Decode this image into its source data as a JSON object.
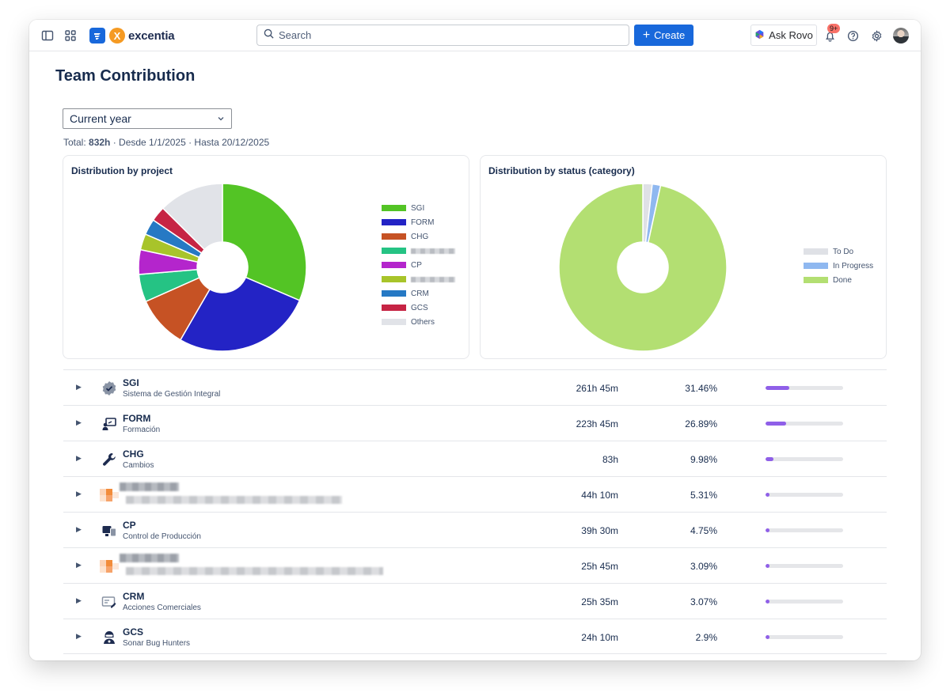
{
  "nav": {
    "brand": "excentia",
    "brand_mark": "X",
    "search_placeholder": "Search",
    "create_label": "Create",
    "rovo_label": "Ask Rovo",
    "notification_badge": "9+"
  },
  "page": {
    "title": "Team Contribution",
    "period": "Current year",
    "summary_prefix": "Total: ",
    "summary_total": "832h",
    "summary_suffix": " · Desde 1/1/2025 · Hasta 20/12/2025"
  },
  "project_chart": {
    "title": "Distribution by project",
    "chart_data": {
      "type": "pie",
      "title": "Distribution by project",
      "hole": "donut",
      "labels": [
        "SGI",
        "FORM",
        "CHG",
        "[redacted]",
        "CP",
        "[redacted]",
        "CRM",
        "GCS",
        "Others"
      ],
      "values": [
        31.46,
        26.89,
        9.98,
        5.31,
        4.75,
        3.09,
        3.07,
        2.9,
        12.55
      ],
      "colors": [
        "#53c425",
        "#2323c5",
        "#c65224",
        "#25c384",
        "#b425cc",
        "#a8c42a",
        "#2679c4",
        "#c62444",
        "#e1e3e8"
      ],
      "legend_position": "right"
    }
  },
  "status_chart": {
    "title": "Distribution by status (category)",
    "chart_data": {
      "type": "pie",
      "title": "Distribution by status (category)",
      "hole": "donut",
      "labels": [
        "To Do",
        "In Progress",
        "Done"
      ],
      "values": [
        1.8,
        1.6,
        96.6
      ],
      "colors": [
        "#dfe1e6",
        "#8fb8f0",
        "#b3df72"
      ],
      "legend_position": "right"
    }
  },
  "projects": [
    {
      "code": "SGI",
      "name": "Sistema de Gestión Integral",
      "time": "261h 45m",
      "pct": "31.46%",
      "share": 0.3146,
      "icon": "verified-badge-icon",
      "redacted": false
    },
    {
      "code": "FORM",
      "name": "Formación",
      "time": "223h 45m",
      "pct": "26.89%",
      "share": 0.2689,
      "icon": "presentation-icon",
      "redacted": false
    },
    {
      "code": "CHG",
      "name": "Cambios",
      "time": "83h",
      "pct": "9.98%",
      "share": 0.0998,
      "icon": "wrench-icon",
      "redacted": false
    },
    {
      "code": "",
      "name": "",
      "time": "44h 10m",
      "pct": "5.31%",
      "share": 0.0531,
      "icon": "pixelated-project-icon",
      "redacted": true
    },
    {
      "code": "CP",
      "name": "Control de Producción",
      "time": "39h 30m",
      "pct": "4.75%",
      "share": 0.0475,
      "icon": "devices-icon",
      "redacted": false
    },
    {
      "code": "",
      "name": "",
      "time": "25h 45m",
      "pct": "3.09%",
      "share": 0.0309,
      "icon": "pixelated-project-icon",
      "redacted": true
    },
    {
      "code": "CRM",
      "name": "Acciones Comerciales",
      "time": "25h 35m",
      "pct": "3.07%",
      "share": 0.0307,
      "icon": "id-card-icon",
      "redacted": false
    },
    {
      "code": "GCS",
      "name": "Sonar Bug Hunters",
      "time": "24h 10m",
      "pct": "2.9%",
      "share": 0.029,
      "icon": "bug-hunter-icon",
      "redacted": false
    }
  ]
}
